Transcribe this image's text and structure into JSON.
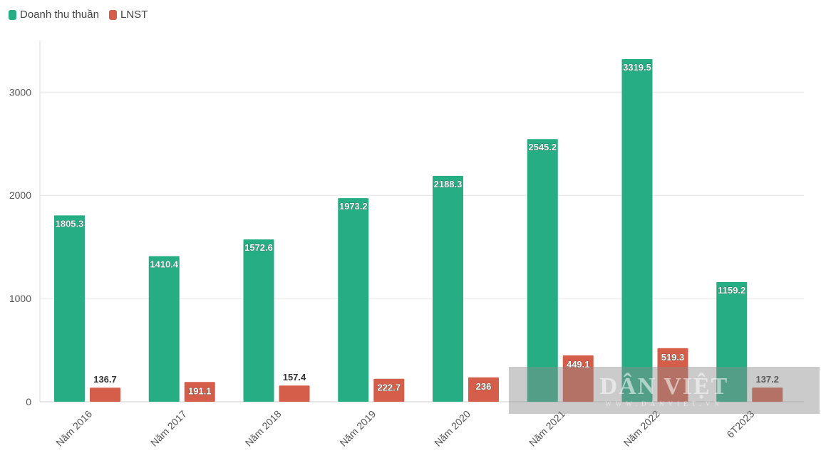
{
  "legend": {
    "items": [
      {
        "label": "Doanh thu thuần",
        "color": "#26ad84"
      },
      {
        "label": "LNST",
        "color": "#d55e4a"
      }
    ]
  },
  "watermark": {
    "title": "DÂN VIỆT",
    "subtitle": "WWW.DANVIET.VN"
  },
  "chart_data": {
    "type": "bar",
    "categories": [
      "Năm 2016",
      "Năm 2017",
      "Năm 2018",
      "Năm 2019",
      "Năm 2020",
      "Năm 2021",
      "Năm 2022",
      "6T2023"
    ],
    "series": [
      {
        "name": "Doanh thu thuần",
        "color": "#26ad84",
        "values": [
          1805.3,
          1410.4,
          1572.6,
          1973.2,
          2188.3,
          2545.2,
          3319.5,
          1159.2
        ],
        "labels": [
          "1805.3",
          "1410.4",
          "1572.6",
          "1973.2",
          "2188.3",
          "2545.2",
          "3319.5",
          "1159.2"
        ]
      },
      {
        "name": "LNST",
        "color": "#d55e4a",
        "values": [
          136.7,
          191.1,
          157.4,
          222.7,
          236,
          449.1,
          519.3,
          137.2
        ],
        "labels": [
          "136.7",
          "191.1",
          "157.4",
          "222.7",
          "236",
          "449.1",
          "519.3",
          "137.2"
        ]
      }
    ],
    "yticks": [
      0,
      1000,
      2000,
      3000
    ],
    "ylim": [
      0,
      3500
    ],
    "grid": true,
    "legend_position": "top-left",
    "title": "",
    "xlabel": "",
    "ylabel": ""
  }
}
